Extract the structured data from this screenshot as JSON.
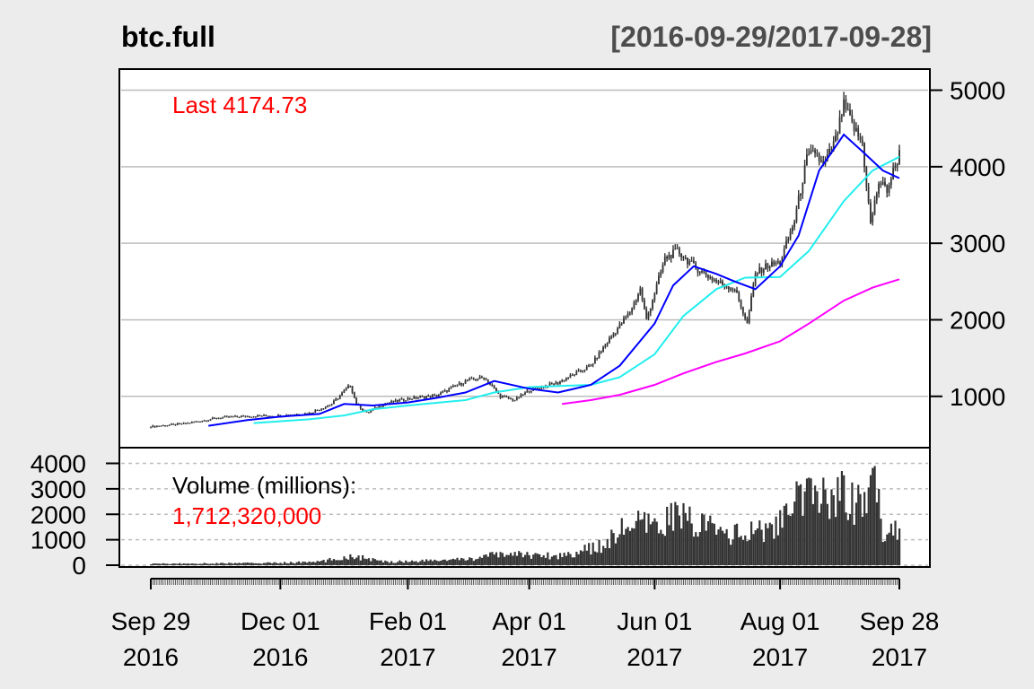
{
  "chart_data": {
    "type": "candlestick",
    "title": "btc.full",
    "date_range": "[2016-09-29/2017-09-28]",
    "last_label": "Last 4174.73",
    "volume_label": "Volume (millions):",
    "volume_value": "1,712,320,000",
    "price_axis": {
      "ticks": [
        "1000",
        "2000",
        "3000",
        "4000",
        "5000"
      ],
      "range": [
        470,
        5100
      ]
    },
    "volume_axis": {
      "ticks": [
        "0",
        "1000",
        "2000",
        "3000",
        "4000"
      ],
      "range": [
        0,
        4300
      ]
    },
    "x_ticks": [
      {
        "date": "2016-09-29",
        "month": "Sep 29",
        "year": "2016"
      },
      {
        "date": "2016-12-01",
        "month": "Dec 01",
        "year": "2016"
      },
      {
        "date": "2017-02-01",
        "month": "Feb 01",
        "year": "2017"
      },
      {
        "date": "2017-04-01",
        "month": "Apr 01",
        "year": "2017"
      },
      {
        "date": "2017-06-01",
        "month": "Jun 01",
        "year": "2017"
      },
      {
        "date": "2017-08-01",
        "month": "Aug 01",
        "year": "2017"
      },
      {
        "date": "2017-09-28",
        "month": "Sep 28",
        "year": "2017"
      }
    ],
    "x_range": [
      "2016-09-29",
      "2017-09-28"
    ],
    "price_close": [
      [
        "2016-09-29",
        605
      ],
      [
        "2016-10-15",
        640
      ],
      [
        "2016-11-01",
        720
      ],
      [
        "2016-11-15",
        740
      ],
      [
        "2016-12-01",
        750
      ],
      [
        "2016-12-15",
        780
      ],
      [
        "2016-12-26",
        900
      ],
      [
        "2017-01-04",
        1150
      ],
      [
        "2017-01-07",
        900
      ],
      [
        "2017-01-12",
        780
      ],
      [
        "2017-01-20",
        900
      ],
      [
        "2017-02-01",
        970
      ],
      [
        "2017-02-15",
        1010
      ],
      [
        "2017-03-01",
        1200
      ],
      [
        "2017-03-10",
        1250
      ],
      [
        "2017-03-18",
        1000
      ],
      [
        "2017-03-25",
        950
      ],
      [
        "2017-04-01",
        1080
      ],
      [
        "2017-04-15",
        1180
      ],
      [
        "2017-05-01",
        1400
      ],
      [
        "2017-05-10",
        1750
      ],
      [
        "2017-05-20",
        2100
      ],
      [
        "2017-05-25",
        2400
      ],
      [
        "2017-05-28",
        2000
      ],
      [
        "2017-06-06",
        2800
      ],
      [
        "2017-06-12",
        2900
      ],
      [
        "2017-06-20",
        2700
      ],
      [
        "2017-07-01",
        2500
      ],
      [
        "2017-07-10",
        2400
      ],
      [
        "2017-07-16",
        1950
      ],
      [
        "2017-07-20",
        2600
      ],
      [
        "2017-07-25",
        2700
      ],
      [
        "2017-08-01",
        2750
      ],
      [
        "2017-08-08",
        3300
      ],
      [
        "2017-08-14",
        4100
      ],
      [
        "2017-08-18",
        4200
      ],
      [
        "2017-08-22",
        4000
      ],
      [
        "2017-08-28",
        4350
      ],
      [
        "2017-09-01",
        4800
      ],
      [
        "2017-09-06",
        4500
      ],
      [
        "2017-09-10",
        4300
      ],
      [
        "2017-09-14",
        3250
      ],
      [
        "2017-09-18",
        3800
      ],
      [
        "2017-09-22",
        3700
      ],
      [
        "2017-09-28",
        4174.73
      ]
    ],
    "sma_20": [
      [
        "2016-10-27",
        615
      ],
      [
        "2016-11-15",
        690
      ],
      [
        "2016-12-01",
        735
      ],
      [
        "2016-12-20",
        770
      ],
      [
        "2017-01-01",
        900
      ],
      [
        "2017-01-15",
        880
      ],
      [
        "2017-02-01",
        920
      ],
      [
        "2017-02-15",
        980
      ],
      [
        "2017-03-01",
        1050
      ],
      [
        "2017-03-15",
        1200
      ],
      [
        "2017-04-01",
        1100
      ],
      [
        "2017-04-15",
        1050
      ],
      [
        "2017-05-01",
        1150
      ],
      [
        "2017-05-15",
        1400
      ],
      [
        "2017-06-01",
        1950
      ],
      [
        "2017-06-10",
        2450
      ],
      [
        "2017-06-20",
        2700
      ],
      [
        "2017-07-01",
        2600
      ],
      [
        "2017-07-10",
        2500
      ],
      [
        "2017-07-20",
        2400
      ],
      [
        "2017-08-01",
        2700
      ],
      [
        "2017-08-10",
        3100
      ],
      [
        "2017-08-20",
        3950
      ],
      [
        "2017-09-01",
        4420
      ],
      [
        "2017-09-10",
        4200
      ],
      [
        "2017-09-20",
        3950
      ],
      [
        "2017-09-28",
        3850
      ]
    ],
    "sma_50": [
      [
        "2016-11-18",
        650
      ],
      [
        "2016-12-15",
        700
      ],
      [
        "2017-01-01",
        750
      ],
      [
        "2017-01-15",
        830
      ],
      [
        "2017-02-01",
        880
      ],
      [
        "2017-03-01",
        950
      ],
      [
        "2017-03-15",
        1050
      ],
      [
        "2017-04-01",
        1120
      ],
      [
        "2017-05-01",
        1150
      ],
      [
        "2017-05-15",
        1250
      ],
      [
        "2017-06-01",
        1550
      ],
      [
        "2017-06-15",
        2050
      ],
      [
        "2017-07-01",
        2400
      ],
      [
        "2017-07-15",
        2550
      ],
      [
        "2017-08-01",
        2560
      ],
      [
        "2017-08-15",
        2900
      ],
      [
        "2017-09-01",
        3550
      ],
      [
        "2017-09-15",
        3950
      ],
      [
        "2017-09-28",
        4130
      ]
    ],
    "sma_200": [
      [
        "2017-04-17",
        900
      ],
      [
        "2017-05-01",
        950
      ],
      [
        "2017-05-15",
        1020
      ],
      [
        "2017-06-01",
        1150
      ],
      [
        "2017-06-15",
        1300
      ],
      [
        "2017-07-01",
        1450
      ],
      [
        "2017-07-15",
        1560
      ],
      [
        "2017-08-01",
        1720
      ],
      [
        "2017-08-15",
        1950
      ],
      [
        "2017-09-01",
        2250
      ],
      [
        "2017-09-15",
        2420
      ],
      [
        "2017-09-28",
        2530
      ]
    ],
    "volume": [
      [
        "2016-09-29",
        60
      ],
      [
        "2016-11-01",
        80
      ],
      [
        "2016-12-01",
        100
      ],
      [
        "2016-12-20",
        150
      ],
      [
        "2017-01-05",
        400
      ],
      [
        "2017-01-20",
        150
      ],
      [
        "2017-02-01",
        170
      ],
      [
        "2017-03-01",
        250
      ],
      [
        "2017-03-20",
        500
      ],
      [
        "2017-04-15",
        400
      ],
      [
        "2017-05-05",
        800
      ],
      [
        "2017-05-20",
        1800
      ],
      [
        "2017-06-01",
        1600
      ],
      [
        "2017-06-10",
        2200
      ],
      [
        "2017-06-20",
        1900
      ],
      [
        "2017-07-01",
        1500
      ],
      [
        "2017-07-15",
        1300
      ],
      [
        "2017-07-25",
        1600
      ],
      [
        "2017-08-01",
        1800
      ],
      [
        "2017-08-10",
        2800
      ],
      [
        "2017-08-20",
        3000
      ],
      [
        "2017-09-01",
        3200
      ],
      [
        "2017-09-10",
        2500
      ],
      [
        "2017-09-15",
        4000
      ],
      [
        "2017-09-20",
        1500
      ],
      [
        "2017-09-28",
        1712
      ]
    ],
    "colors": {
      "background": "#ececec",
      "candles": "#333333",
      "sma_20": "#0000ff",
      "sma_50": "#22eeee",
      "sma_200": "#ff00ff",
      "last_label": "#ff0000",
      "volume_value": "#ff0000",
      "grid": "#bdbdbd",
      "volume_bars": "#333333"
    }
  }
}
